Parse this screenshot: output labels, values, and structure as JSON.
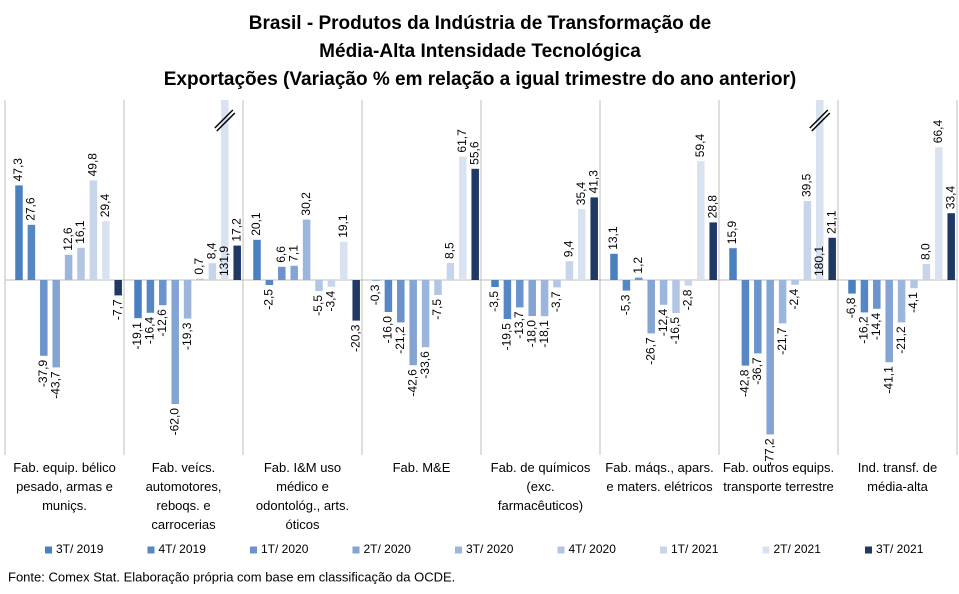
{
  "chart_data": {
    "type": "bar",
    "title": [
      "Brasil - Produtos da Indústria de Transformação de",
      "Média-Alta Intensidade Tecnológica",
      "Exportações (Variação % em relação a igual trimestre do ano anterior)"
    ],
    "categories": [
      "Fab. equip. bélico pesado, armas e muniçs.",
      "Fab. veícs. automotores, reboqs. e carrocerias",
      "Fab. I&M uso médico e odontológ., arts. óticos",
      "Fab. M&E",
      "Fab. de químicos (exc. farmacêuticos)",
      "Fab. máqs., apars. e maters. elétricos",
      "Fab. outros equips. transporte terrestre",
      "Ind. transf. de média-alta"
    ],
    "ylim": [
      -87.5,
      90
    ],
    "series": [
      {
        "name": "3T/ 2019",
        "color": "#4a7fc0",
        "values": [
          47.3,
          -19.1,
          20.1,
          -0.3,
          -3.5,
          13.1,
          15.9,
          -6.8
        ],
        "value_labels": [
          "47,3",
          "-19,1",
          "20,1",
          "-0,3",
          "-3,5",
          "13,1",
          "15,9",
          "-6,8"
        ]
      },
      {
        "name": "4T/ 2019",
        "color": "#5686c4",
        "values": [
          27.6,
          -16.4,
          -2.5,
          -16.0,
          -19.5,
          -5.3,
          -42.8,
          -16.2
        ],
        "value_labels": [
          "27,6",
          "-16,4",
          "-2,5",
          "-16,0",
          "-19,5",
          "-5,3",
          "-42,8",
          "-16,2"
        ]
      },
      {
        "name": "1T/ 2020",
        "color": "#6a94cb",
        "values": [
          -37.9,
          -12.6,
          6.6,
          -21.2,
          -13.7,
          1.2,
          -36.7,
          -14.4
        ],
        "value_labels": [
          "-37,9",
          "-12,6",
          "6,6",
          "-21,2",
          "-13,7",
          "1,2",
          "-36,7",
          "-14,4"
        ]
      },
      {
        "name": "2T/ 2020",
        "color": "#84a4d3",
        "values": [
          -43.7,
          -62.0,
          7.1,
          -42.6,
          -18.0,
          -26.7,
          -77.2,
          -41.1
        ],
        "value_labels": [
          "-43,7",
          "-62,0",
          "7,1",
          "-42,6",
          "-18,0",
          "-26,7",
          "-77,2",
          "-41,1"
        ]
      },
      {
        "name": "3T/ 2020",
        "color": "#9cb5dc",
        "values": [
          12.6,
          -19.3,
          30.2,
          -33.6,
          -18.1,
          -12.4,
          -21.7,
          -21.2
        ],
        "value_labels": [
          "12,6",
          "-19,3",
          "30,2",
          "-33,6",
          "-18,1",
          "-12,4",
          "-21,7",
          "-21,2"
        ]
      },
      {
        "name": "4T/ 2020",
        "color": "#b2c6e3",
        "values": [
          16.1,
          0.7,
          -5.5,
          -7.5,
          -3.7,
          -16.5,
          -2.4,
          -4.1
        ],
        "value_labels": [
          "16,1",
          "0,7",
          "-5,5",
          "-7,5",
          "-3,7",
          "-16,5",
          "-2,4",
          "-4,1"
        ]
      },
      {
        "name": "1T/ 2021",
        "color": "#c7d5ea",
        "values": [
          49.8,
          8.4,
          -3.4,
          8.5,
          9.4,
          -2.8,
          39.5,
          8.0
        ],
        "value_labels": [
          "49,8",
          "8,4",
          "-3,4",
          "8,5",
          "9,4",
          "-2,8",
          "39,5",
          "8,0"
        ]
      },
      {
        "name": "2T/ 2021",
        "color": "#d9e2f1",
        "values": [
          29.4,
          131.9,
          19.1,
          61.7,
          35.4,
          59.4,
          180.1,
          66.4
        ],
        "value_labels": [
          "29,4",
          "131,9",
          "19,1",
          "61,7",
          "35,4",
          "59,4",
          "180,1",
          "66,4"
        ]
      },
      {
        "name": "3T/ 2021",
        "color": "#203864",
        "values": [
          -7.7,
          17.2,
          -20.3,
          55.6,
          41.3,
          28.8,
          21.1,
          33.4
        ],
        "value_labels": [
          "-7,7",
          "17,2",
          "-20,3",
          "55,6",
          "41,3",
          "28,8",
          "21,1",
          "33,4"
        ]
      }
    ],
    "source": "Fonte: Comex Stat. Elaboração própria com base em classificação da OCDE."
  }
}
